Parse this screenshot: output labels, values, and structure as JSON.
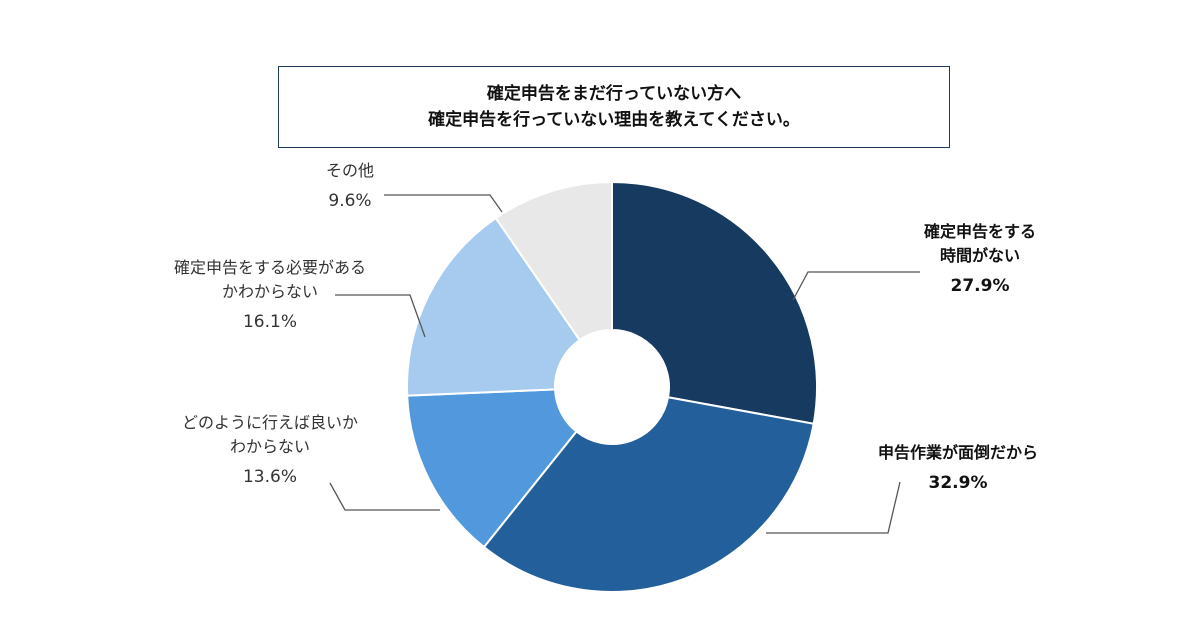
{
  "chart_data": {
    "type": "pie",
    "donut": true,
    "title": [
      "確定申告をまだ行っていない方へ",
      "確定申告を行っていない理由を教えてください。"
    ],
    "slices": [
      {
        "label": [
          "確定申告をする",
          "時間がない"
        ],
        "value": 27.9,
        "value_label": "27.9%",
        "color": "#173a60"
      },
      {
        "label": [
          "申告作業が面倒だから"
        ],
        "value": 32.9,
        "value_label": "32.9%",
        "color": "#235f9b"
      },
      {
        "label": [
          "どのように行えば良いか",
          "わからない"
        ],
        "value": 13.6,
        "value_label": "13.6%",
        "color": "#5198dc"
      },
      {
        "label": [
          "確定申告をする必要がある",
          "かわからない"
        ],
        "value": 16.1,
        "value_label": "16.1%",
        "color": "#a7cbee"
      },
      {
        "label": [
          "その他"
        ],
        "value": 9.6,
        "value_label": "9.6%",
        "color": "#e8e8e8"
      }
    ]
  }
}
